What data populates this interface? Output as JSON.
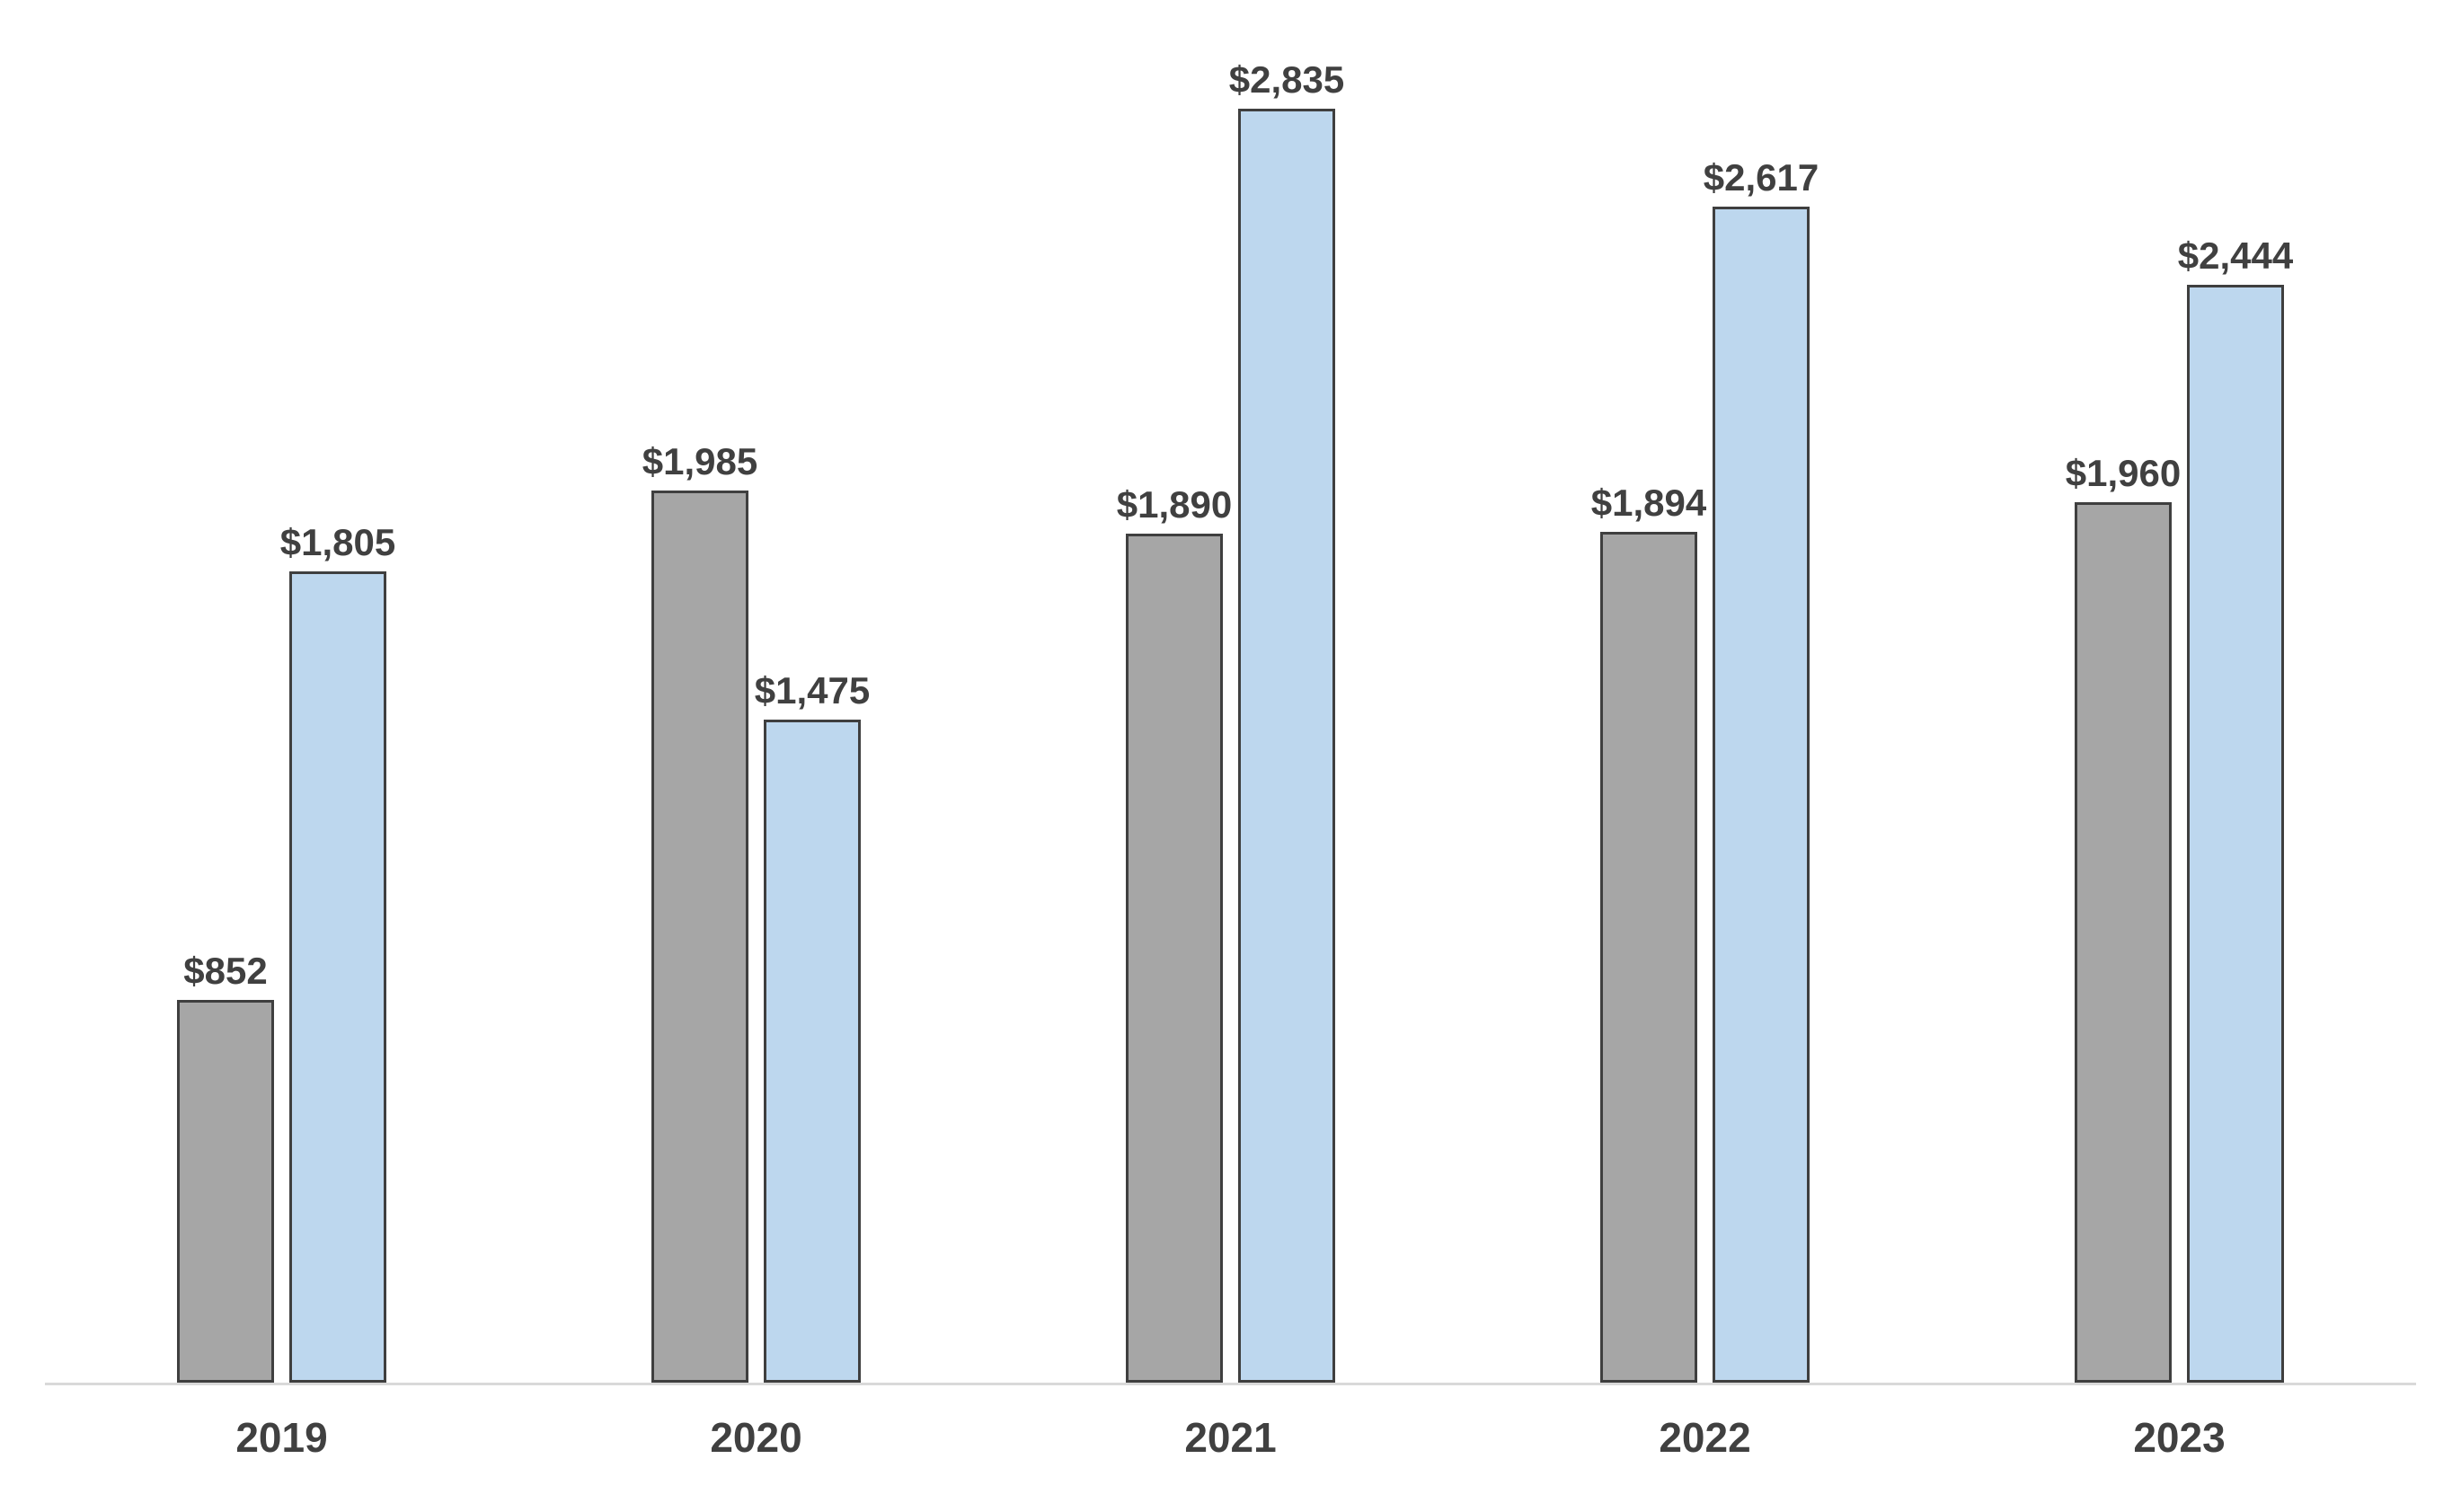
{
  "chart_data": {
    "type": "bar",
    "title": "",
    "xlabel": "",
    "ylabel": "",
    "categories": [
      "2019",
      "2020",
      "2021",
      "2022",
      "2023"
    ],
    "series": [
      {
        "name": "gray-series",
        "fill_color": "#a6a6a6",
        "border_color": "#3f3f3f",
        "values": [
          852,
          1985,
          1890,
          1894,
          1960
        ],
        "labels": [
          "$852",
          "$1,985",
          "$1,890",
          "$1,894",
          "$1,960"
        ]
      },
      {
        "name": "blue-series",
        "fill_color": "#bdd7ee",
        "border_color": "#3f3f3f",
        "values": [
          1805,
          1475,
          2835,
          2617,
          2444
        ],
        "labels": [
          "$1,805",
          "$1,475",
          "$2,835",
          "$2,617",
          "$2,444"
        ]
      }
    ],
    "ylim": [
      0,
      3078
    ],
    "grid": false,
    "legend": null,
    "label_color": "#404040",
    "axis_line_color": "#d9d9d9",
    "background_color": "#ffffff"
  }
}
